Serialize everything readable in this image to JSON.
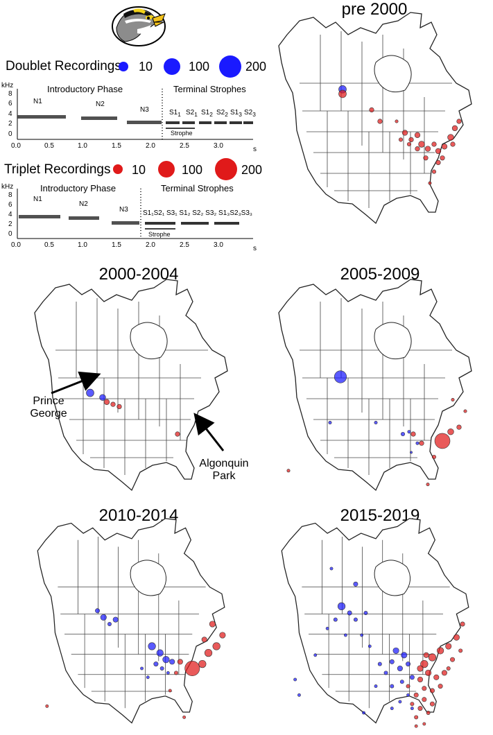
{
  "map_titles": {
    "pre2000": "pre 2000",
    "y2000": "2000-2004",
    "y2005": "2005-2009",
    "y2010": "2010-2014",
    "y2015": "2015-2019"
  },
  "legend": {
    "doublet_title": "Doublet Recordings",
    "triplet_title": "Triplet Recordings",
    "sizes": [
      "10",
      "100",
      "200"
    ],
    "doublet_color": "#1a1aff",
    "triplet_color": "#e01a1a"
  },
  "doublet_spec": {
    "yunit": "kHz",
    "yticks": [
      "8",
      "6",
      "4",
      "2",
      "0"
    ],
    "xticks": [
      "0.0",
      "0.5",
      "1.0",
      "1.5",
      "2.0",
      "2.5",
      "3.0"
    ],
    "xunit": "s",
    "phase_intro": "Introductory Phase",
    "phase_terminal": "Terminal Strophes",
    "notes": [
      "N1",
      "N2",
      "N3"
    ],
    "strophe_labels": [
      "S1",
      "1",
      "S2",
      "1",
      "S1",
      "2",
      "S2",
      "2",
      "S1",
      "3",
      "S2",
      "3"
    ],
    "strophe_word": "Strophe"
  },
  "triplet_spec": {
    "yunit": "kHz",
    "yticks": [
      "8",
      "6",
      "4",
      "2",
      "0"
    ],
    "xticks": [
      "0.0",
      "0.5",
      "1.0",
      "1.5",
      "2.0",
      "2.5",
      "3.0"
    ],
    "xunit": "s",
    "phase_intro": "Introductory Phase",
    "phase_terminal": "Terminal Strophes",
    "notes": [
      "N1",
      "N2",
      "N3"
    ],
    "strophe_text": "S1₁S2₁ S3₁ S1₂ S2₂ S3₂ S1₃S2₃S3₃",
    "strophe_word": "Strophe"
  },
  "annotations": {
    "prince_george_1": "Prince",
    "prince_george_2": "George",
    "algonquin_1": "Algonquin",
    "algonquin_2": "Park"
  },
  "map_points": {
    "pre2000": {
      "blue": [
        [
          0.34,
          0.36,
          0.05
        ]
      ],
      "red": [
        [
          0.34,
          0.38,
          0.05
        ],
        [
          0.48,
          0.45,
          0.03
        ],
        [
          0.52,
          0.5,
          0.03
        ],
        [
          0.64,
          0.55,
          0.035
        ],
        [
          0.67,
          0.58,
          0.03
        ],
        [
          0.7,
          0.56,
          0.035
        ],
        [
          0.72,
          0.6,
          0.04
        ],
        [
          0.75,
          0.62,
          0.035
        ],
        [
          0.78,
          0.6,
          0.03
        ],
        [
          0.8,
          0.63,
          0.035
        ],
        [
          0.83,
          0.61,
          0.035
        ],
        [
          0.86,
          0.57,
          0.04
        ],
        [
          0.88,
          0.53,
          0.035
        ],
        [
          0.9,
          0.5,
          0.03
        ],
        [
          0.87,
          0.6,
          0.03
        ],
        [
          0.8,
          0.68,
          0.03
        ],
        [
          0.78,
          0.72,
          0.025
        ],
        [
          0.76,
          0.77,
          0.02
        ],
        [
          0.82,
          0.66,
          0.03
        ],
        [
          0.74,
          0.66,
          0.03
        ],
        [
          0.7,
          0.62,
          0.03
        ],
        [
          0.66,
          0.6,
          0.025
        ],
        [
          0.62,
          0.58,
          0.025
        ],
        [
          0.6,
          0.5,
          0.02
        ]
      ]
    },
    "y2000": {
      "blue": [
        [
          0.3,
          0.52,
          0.05
        ],
        [
          0.36,
          0.54,
          0.04
        ]
      ],
      "red": [
        [
          0.38,
          0.56,
          0.035
        ],
        [
          0.41,
          0.57,
          0.03
        ],
        [
          0.44,
          0.58,
          0.03
        ],
        [
          0.72,
          0.7,
          0.03
        ]
      ]
    },
    "y2005": {
      "blue": [
        [
          0.33,
          0.45,
          0.08
        ],
        [
          0.28,
          0.65,
          0.02
        ],
        [
          0.5,
          0.65,
          0.02
        ],
        [
          0.63,
          0.7,
          0.025
        ],
        [
          0.66,
          0.69,
          0.02
        ],
        [
          0.7,
          0.74,
          0.02
        ],
        [
          0.67,
          0.78,
          0.015
        ]
      ],
      "red": [
        [
          0.82,
          0.73,
          0.1
        ],
        [
          0.86,
          0.69,
          0.04
        ],
        [
          0.68,
          0.7,
          0.03
        ],
        [
          0.72,
          0.74,
          0.03
        ],
        [
          0.9,
          0.67,
          0.03
        ],
        [
          0.93,
          0.6,
          0.02
        ],
        [
          0.87,
          0.55,
          0.02
        ],
        [
          0.08,
          0.86,
          0.02
        ],
        [
          0.75,
          0.92,
          0.02
        ],
        [
          0.78,
          0.8,
          0.025
        ]
      ]
    },
    "y2010": {
      "blue": [
        [
          0.36,
          0.47,
          0.04
        ],
        [
          0.33,
          0.44,
          0.03
        ],
        [
          0.42,
          0.48,
          0.035
        ],
        [
          0.39,
          0.5,
          0.025
        ],
        [
          0.6,
          0.6,
          0.05
        ],
        [
          0.64,
          0.63,
          0.045
        ],
        [
          0.67,
          0.66,
          0.045
        ],
        [
          0.7,
          0.67,
          0.035
        ],
        [
          0.62,
          0.68,
          0.03
        ],
        [
          0.65,
          0.7,
          0.025
        ],
        [
          0.55,
          0.7,
          0.02
        ],
        [
          0.58,
          0.74,
          0.02
        ],
        [
          0.68,
          0.72,
          0.02
        ]
      ],
      "red": [
        [
          0.8,
          0.7,
          0.1
        ],
        [
          0.85,
          0.68,
          0.05
        ],
        [
          0.88,
          0.63,
          0.05
        ],
        [
          0.92,
          0.6,
          0.05
        ],
        [
          0.95,
          0.55,
          0.04
        ],
        [
          0.9,
          0.5,
          0.04
        ],
        [
          0.86,
          0.57,
          0.035
        ],
        [
          0.74,
          0.67,
          0.035
        ],
        [
          0.72,
          0.72,
          0.025
        ],
        [
          0.08,
          0.87,
          0.02
        ],
        [
          0.76,
          0.92,
          0.02
        ],
        [
          0.69,
          0.8,
          0.02
        ]
      ]
    },
    "y2015": {
      "blue": [
        [
          0.28,
          0.25,
          0.02
        ],
        [
          0.4,
          0.32,
          0.03
        ],
        [
          0.33,
          0.42,
          0.05
        ],
        [
          0.37,
          0.45,
          0.03
        ],
        [
          0.3,
          0.48,
          0.025
        ],
        [
          0.4,
          0.48,
          0.025
        ],
        [
          0.45,
          0.45,
          0.025
        ],
        [
          0.43,
          0.55,
          0.02
        ],
        [
          0.35,
          0.55,
          0.02
        ],
        [
          0.26,
          0.52,
          0.02
        ],
        [
          0.6,
          0.62,
          0.04
        ],
        [
          0.64,
          0.64,
          0.04
        ],
        [
          0.58,
          0.67,
          0.03
        ],
        [
          0.62,
          0.7,
          0.035
        ],
        [
          0.66,
          0.68,
          0.03
        ],
        [
          0.55,
          0.72,
          0.025
        ],
        [
          0.52,
          0.68,
          0.025
        ],
        [
          0.68,
          0.74,
          0.03
        ],
        [
          0.63,
          0.76,
          0.025
        ],
        [
          0.58,
          0.78,
          0.025
        ],
        [
          0.5,
          0.78,
          0.02
        ],
        [
          0.66,
          0.82,
          0.02
        ],
        [
          0.62,
          0.85,
          0.02
        ],
        [
          0.58,
          0.88,
          0.02
        ],
        [
          0.68,
          0.88,
          0.02
        ],
        [
          0.1,
          0.75,
          0.02
        ],
        [
          0.12,
          0.82,
          0.02
        ],
        [
          0.2,
          0.64,
          0.02
        ],
        [
          0.47,
          0.6,
          0.02
        ],
        [
          0.44,
          0.9,
          0.02
        ]
      ],
      "red": [
        [
          0.74,
          0.68,
          0.05
        ],
        [
          0.78,
          0.65,
          0.05
        ],
        [
          0.82,
          0.62,
          0.045
        ],
        [
          0.86,
          0.6,
          0.04
        ],
        [
          0.9,
          0.56,
          0.04
        ],
        [
          0.93,
          0.5,
          0.03
        ],
        [
          0.76,
          0.72,
          0.04
        ],
        [
          0.8,
          0.74,
          0.035
        ],
        [
          0.84,
          0.72,
          0.035
        ],
        [
          0.72,
          0.75,
          0.035
        ],
        [
          0.74,
          0.79,
          0.03
        ],
        [
          0.78,
          0.8,
          0.03
        ],
        [
          0.82,
          0.78,
          0.03
        ],
        [
          0.7,
          0.82,
          0.03
        ],
        [
          0.74,
          0.84,
          0.03
        ],
        [
          0.78,
          0.86,
          0.03
        ],
        [
          0.72,
          0.88,
          0.03
        ],
        [
          0.76,
          0.9,
          0.025
        ],
        [
          0.7,
          0.92,
          0.025
        ],
        [
          0.68,
          0.86,
          0.025
        ],
        [
          0.66,
          0.78,
          0.025
        ],
        [
          0.88,
          0.66,
          0.03
        ],
        [
          0.86,
          0.7,
          0.025
        ],
        [
          0.92,
          0.62,
          0.025
        ],
        [
          0.7,
          0.96,
          0.02
        ],
        [
          0.74,
          0.95,
          0.02
        ],
        [
          0.72,
          0.7,
          0.04
        ],
        [
          0.75,
          0.64,
          0.035
        ]
      ]
    }
  }
}
